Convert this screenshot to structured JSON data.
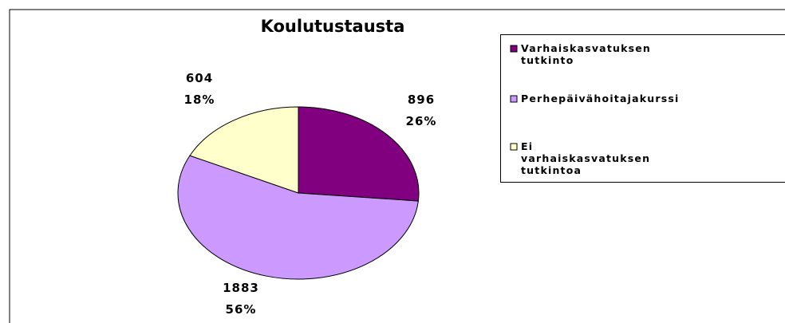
{
  "chart_data": {
    "type": "pie",
    "title": "Koulutustausta",
    "categories": [
      "Varhaiskasvatuksen tutkinto",
      "Perhepäivähoitajakurssi",
      "Ei varhaiskasvatuksen tutkintoa"
    ],
    "values": [
      896,
      1883,
      604
    ],
    "percent_labels": [
      "26%",
      "56%",
      "18%"
    ],
    "colors": [
      "#800080",
      "#cc99ff",
      "#ffffcc"
    ],
    "legend": "right"
  }
}
